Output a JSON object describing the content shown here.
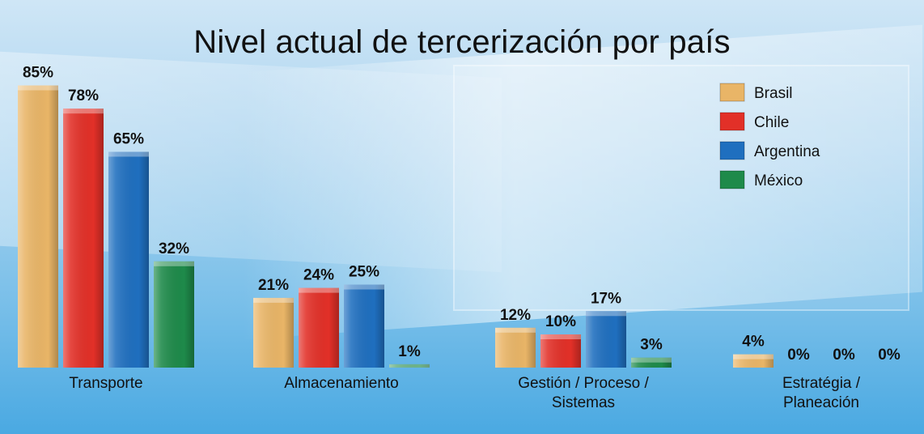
{
  "chart_data": {
    "type": "bar",
    "title": "Nivel actual de tercerización por país",
    "categories": [
      "Transporte",
      "Almacenamiento",
      "Gestión / Proceso / Sistemas",
      "Estratégia / Planeación"
    ],
    "category_lines": [
      [
        "Transporte"
      ],
      [
        "Almacenamiento"
      ],
      [
        "Gestión / Proceso /",
        "Sistemas"
      ],
      [
        "Estratégia /",
        "Planeación"
      ]
    ],
    "series": [
      {
        "name": "Brasil",
        "color": "#e9b567",
        "values": [
          85,
          21,
          12,
          4
        ]
      },
      {
        "name": "Chile",
        "color": "#e23028",
        "values": [
          78,
          24,
          10,
          0
        ]
      },
      {
        "name": "Argentina",
        "color": "#1f6fbf",
        "values": [
          65,
          25,
          17,
          0
        ]
      },
      {
        "name": "México",
        "color": "#1e8a4a",
        "values": [
          32,
          1,
          3,
          0
        ]
      }
    ],
    "value_suffix": "%",
    "ylim": [
      0,
      100
    ],
    "grid": false,
    "legend_position": "top-right"
  }
}
